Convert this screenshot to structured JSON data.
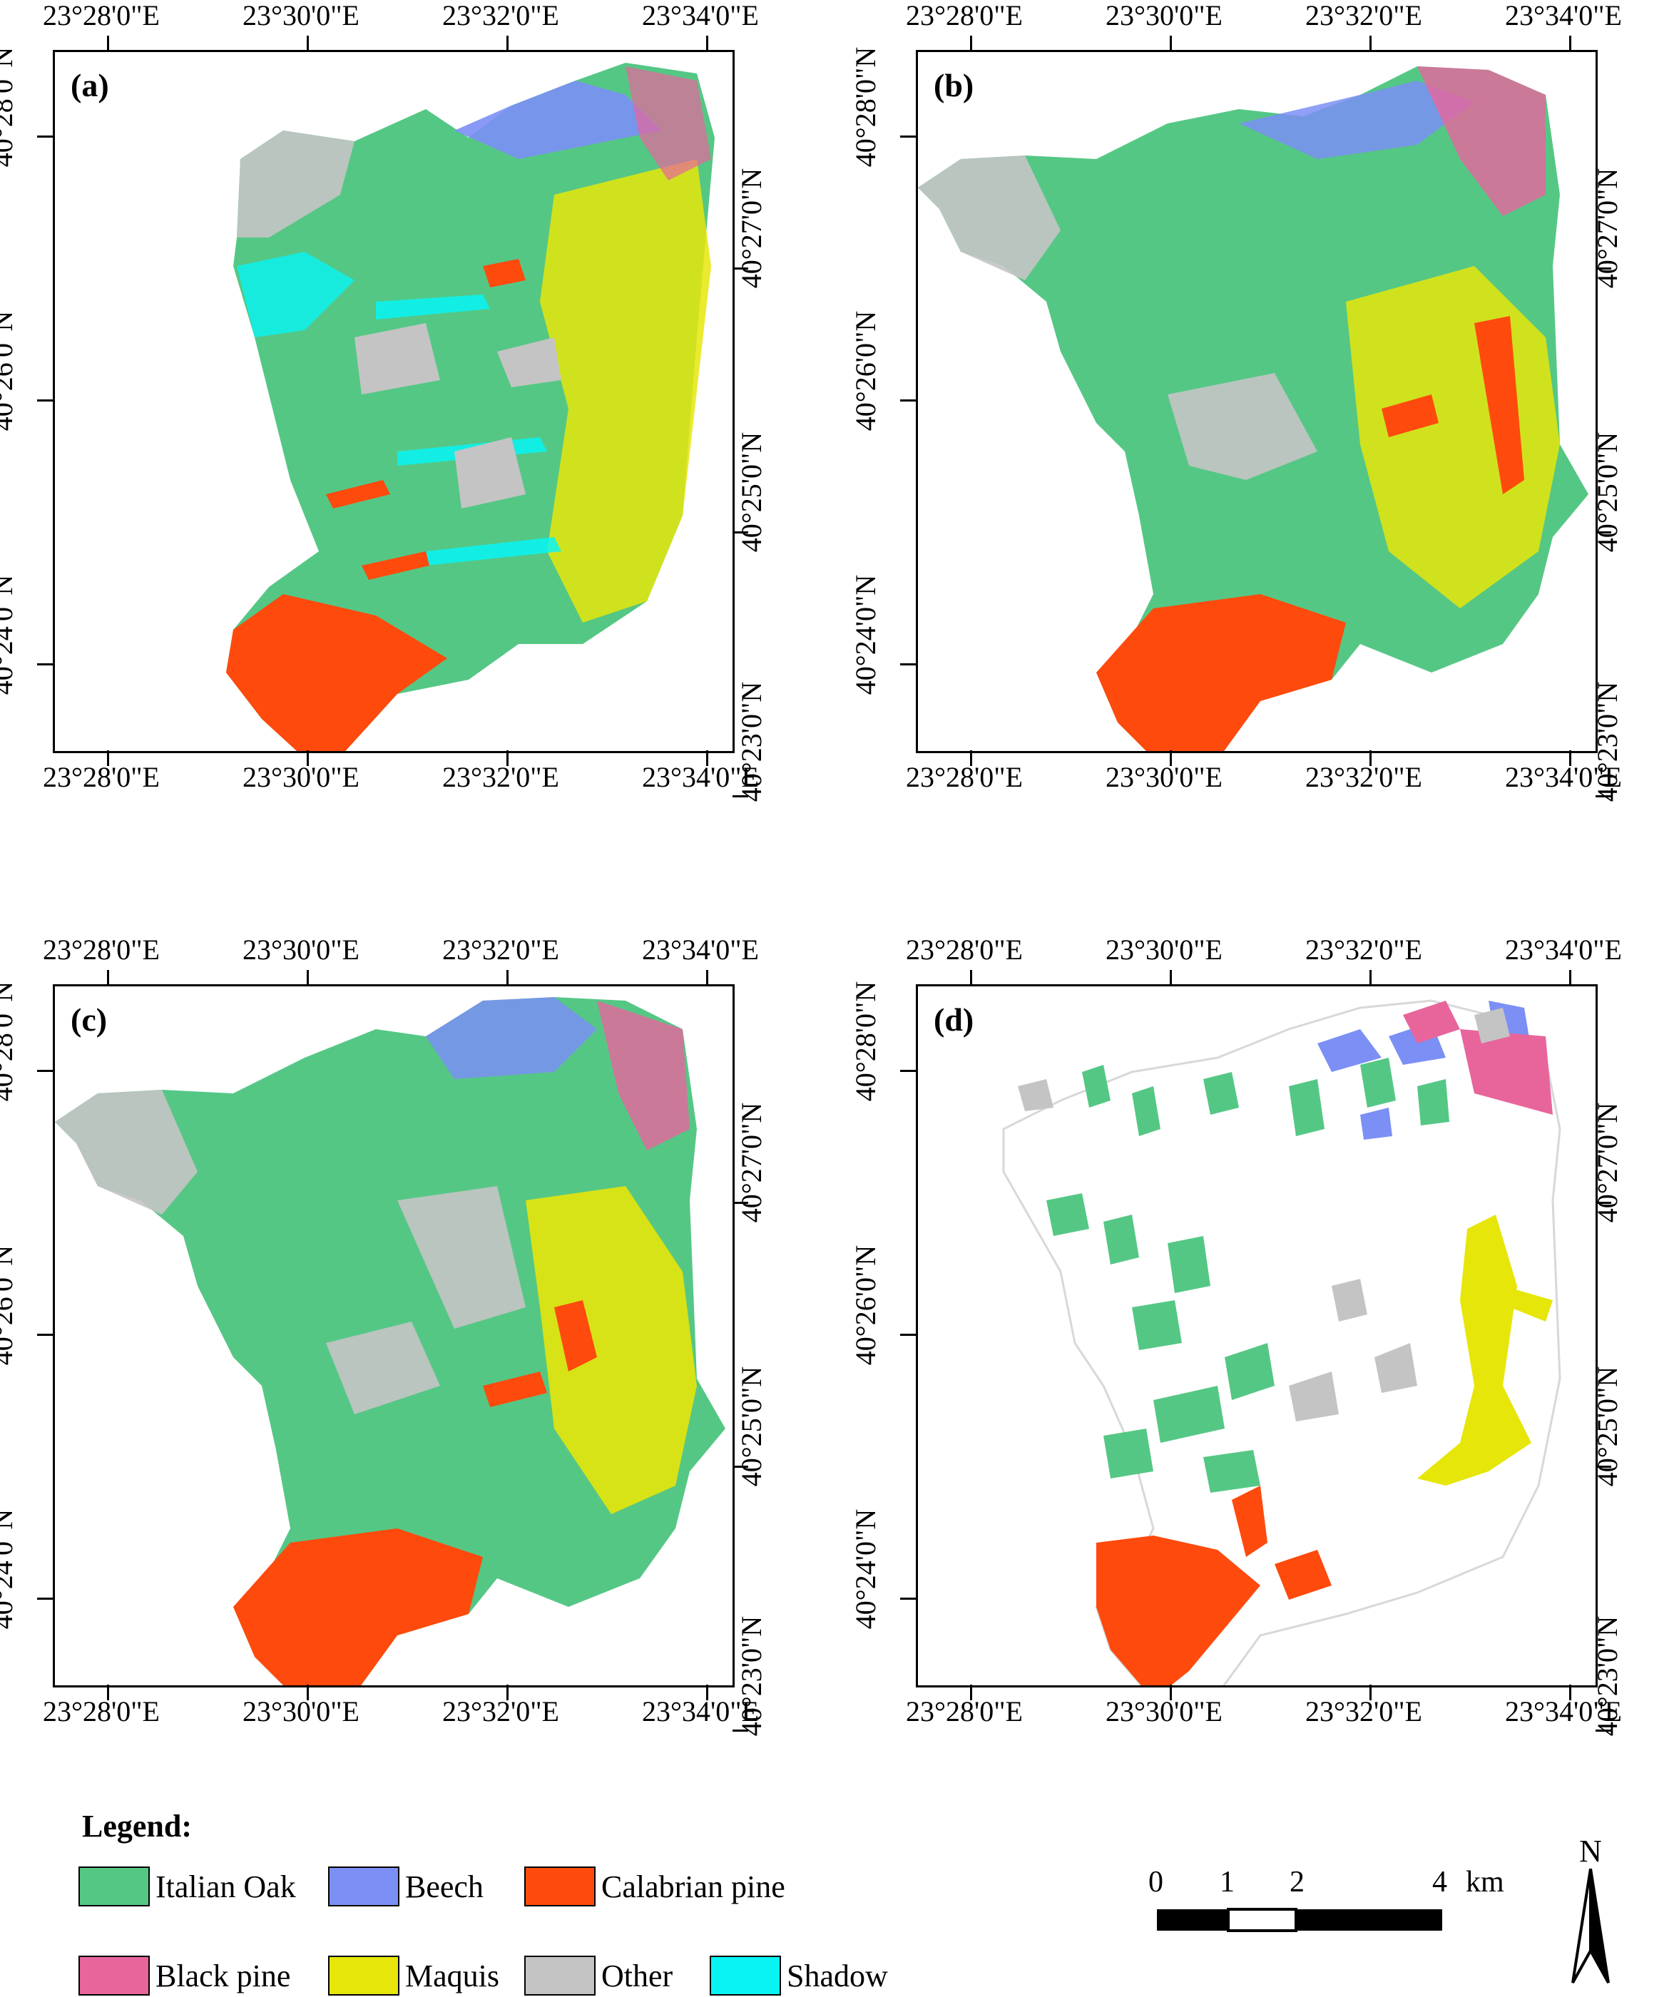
{
  "panels": [
    {
      "id": "a",
      "label": "(a)"
    },
    {
      "id": "b",
      "label": "(b)"
    },
    {
      "id": "c",
      "label": "(c)"
    },
    {
      "id": "d",
      "label": "(d)"
    }
  ],
  "axes": {
    "longitude_labels": [
      "23°28'0\"E",
      "23°30'0\"E",
      "23°32'0\"E",
      "23°34'0\"E"
    ],
    "latitude_labels_left": [
      "40°28'0\"N",
      "40°26'0\"N",
      "40°24'0\"N"
    ],
    "latitude_labels_right": [
      "40°27'0\"N",
      "40°25'0\"N",
      "40°23'0\"N"
    ]
  },
  "legend": {
    "title": "Legend:",
    "items": [
      {
        "label": "Italian Oak",
        "color": "#55c785"
      },
      {
        "label": "Beech",
        "color": "#7b8ff5"
      },
      {
        "label": "Calabrian pine",
        "color": "#ff4a0d"
      },
      {
        "label": "Black pine",
        "color": "#e8659c"
      },
      {
        "label": "Maquis",
        "color": "#e6e60a"
      },
      {
        "label": "Other",
        "color": "#c4c4c4"
      },
      {
        "label": "Shadow",
        "color": "#08f4f4"
      }
    ]
  },
  "scale_bar": {
    "ticks": [
      "0",
      "1",
      "2",
      "4"
    ],
    "unit": "km"
  },
  "north_arrow": {
    "label": "N"
  },
  "colors": {
    "oak": "#55c785",
    "beech": "#7b8ff5",
    "calabrian": "#ff4a0d",
    "black_pine": "#e8659c",
    "maquis": "#e6e60a",
    "other": "#c4c4c4",
    "shadow": "#08f4f4"
  }
}
